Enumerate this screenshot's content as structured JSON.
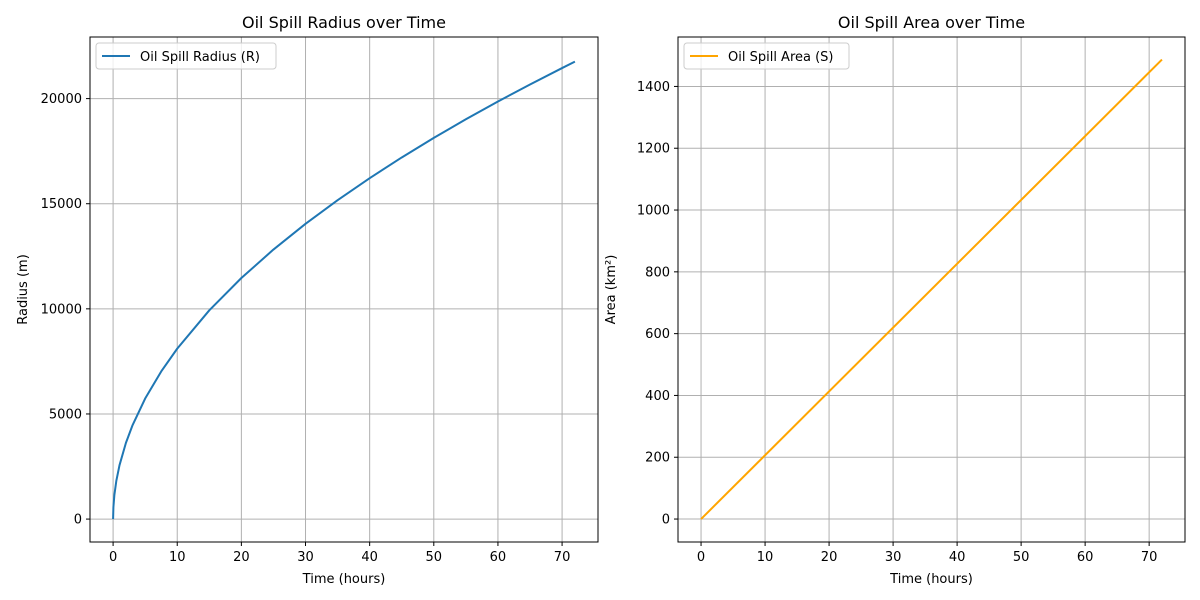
{
  "chart_data": [
    {
      "type": "line",
      "title": "Oil Spill Radius over Time",
      "xlabel": "Time (hours)",
      "ylabel": "Radius (m)",
      "xlim": [
        -3.6,
        75.6
      ],
      "ylim": [
        -1090,
        22930
      ],
      "xticks": [
        0,
        10,
        20,
        30,
        40,
        50,
        60,
        70
      ],
      "yticks": [
        0,
        5000,
        10000,
        15000,
        20000
      ],
      "grid": true,
      "legend_position": "top-left",
      "series": [
        {
          "name": "Oil Spill Radius (R)",
          "color": "#1f77b4",
          "x": [
            0,
            0.05,
            0.2,
            0.5,
            1,
            2,
            3,
            5,
            7.5,
            10,
            15,
            20,
            25,
            30,
            35,
            40,
            45,
            50,
            55,
            60,
            65,
            70,
            72
          ],
          "y": [
            0,
            573,
            1146,
            1813,
            2564,
            3626,
            4441,
            5733,
            7022,
            8108,
            9930,
            11467,
            12820,
            14044,
            15169,
            16216,
            17200,
            18131,
            19016,
            19861,
            20672,
            21453,
            21757
          ]
        }
      ]
    },
    {
      "type": "line",
      "title": "Oil Spill Area over Time",
      "xlabel": "Time (hours)",
      "ylabel": "Area (km²)",
      "xlim": [
        -3.6,
        75.6
      ],
      "ylim": [
        -74.3,
        1560
      ],
      "xticks": [
        0,
        10,
        20,
        30,
        40,
        50,
        60,
        70
      ],
      "yticks": [
        0,
        200,
        400,
        600,
        800,
        1000,
        1200,
        1400
      ],
      "grid": true,
      "legend_position": "top-left",
      "series": [
        {
          "name": "Oil Spill Area (S)",
          "color": "#ffa500",
          "x": [
            0,
            72
          ],
          "y": [
            0,
            1487
          ]
        }
      ]
    }
  ]
}
